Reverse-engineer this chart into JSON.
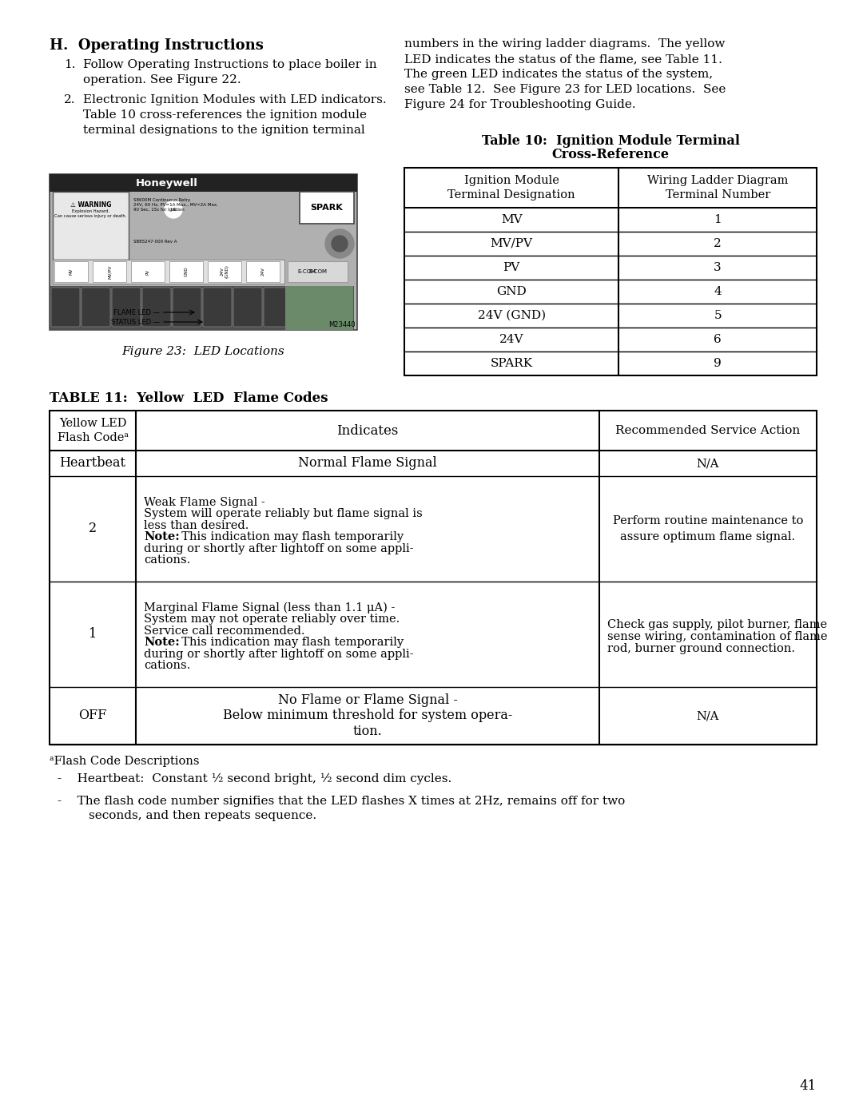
{
  "page_num": "41",
  "bg_color": "#ffffff",
  "text_color": "#000000",
  "section_h_title": "H.  Operating Instructions",
  "para1_text": "Follow Operating Instructions to place boiler in\noperation. See Figure 22.",
  "para2_text": "Electronic Ignition Modules with LED indicators.\nTable 10 cross-references the ignition module\nterminal designations to the ignition terminal",
  "right_col_text": "numbers in the wiring ladder diagrams.  The yellow\nLED indicates the status of the flame, see Table 11.\nThe green LED indicates the status of the system,\nsee Table 12.  See Figure 23 for LED locations.  See\nFigure 24 for Troubleshooting Guide.",
  "fig23_caption": "Figure 23:  LED Locations",
  "table10_title_line1": "Table 10:  Ignition Module Terminal",
  "table10_title_line2": "Cross-Reference",
  "table10_col1_header": "Ignition Module\nTerminal Designation",
  "table10_col2_header": "Wiring Ladder Diagram\nTerminal Number",
  "table10_rows": [
    [
      "MV",
      "1"
    ],
    [
      "MV/PV",
      "2"
    ],
    [
      "PV",
      "3"
    ],
    [
      "GND",
      "4"
    ],
    [
      "24V (GND)",
      "5"
    ],
    [
      "24V",
      "6"
    ],
    [
      "SPARK",
      "9"
    ]
  ],
  "table11_title": "TABLE 11:  Yellow  LED  Flame Codes",
  "table11_col1_header": "Yellow LED\nFlash Codeᵃ",
  "table11_col2_header": "Indicates",
  "table11_col3_header": "Recommended Service Action",
  "table11_rows": [
    {
      "col1": "Heartbeat",
      "col2": "Normal Flame Signal",
      "col3": "N/A",
      "col2_align": "center",
      "col3_align": "center"
    },
    {
      "col1": "2",
      "col2": "Weak Flame Signal -\nSystem will operate reliably but flame signal is\nless than desired.\nNote:  This indication may flash temporarily\nduring or shortly after lightoff on some appli-\ncations.",
      "col3": "Perform routine maintenance to\nassure optimum flame signal.",
      "col2_has_note": true,
      "col2_align": "left",
      "col3_align": "center"
    },
    {
      "col1": "1",
      "col2": "Marginal Flame Signal (less than 1.1 μA) -\nSystem may not operate reliably over time.\nService call recommended.\nNote:  This indication may flash temporarily\nduring or shortly after lightoff on some appli-\ncations.",
      "col3": "Check gas supply, pilot burner, flame\nsense wiring, contamination of flame\nrod, burner ground connection.",
      "col2_has_note": true,
      "col2_align": "left",
      "col3_align": "left"
    },
    {
      "col1": "OFF",
      "col2": "No Flame or Flame Signal -\nBelow minimum threshold for system opera-\ntion.",
      "col3": "N/A",
      "col2_align": "center",
      "col3_align": "center"
    }
  ],
  "footnote_a_title": "ᵃFlash Code Descriptions",
  "footnote_line1": "-    Heartbeat:  Constant ½ second bright, ½ second dim cycles.",
  "footnote_line2a": "-    The flash code number signifies that the LED flashes X times at 2Hz, remains off for two",
  "footnote_line2b": "        seconds, and then repeats sequence."
}
